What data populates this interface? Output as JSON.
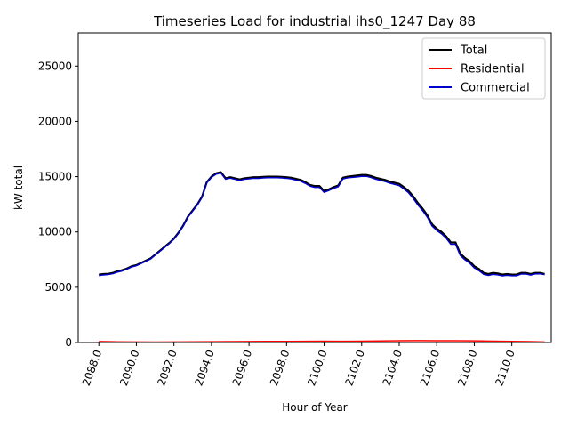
{
  "chart_data": {
    "type": "line",
    "title": "Timeseries Load for industrial ihs0_1247  Day 88",
    "xlabel": "Hour of Year",
    "ylabel": "kW total",
    "xlim": [
      2086.9,
      2112.1
    ],
    "ylim": [
      0,
      28000
    ],
    "xticks": [
      2088,
      2090,
      2092,
      2094,
      2096,
      2098,
      2100,
      2102,
      2104,
      2106,
      2108,
      2110
    ],
    "xtick_labels": [
      "2088.0",
      "2090.0",
      "2092.0",
      "2094.0",
      "2096.0",
      "2098.0",
      "2100.0",
      "2102.0",
      "2104.0",
      "2106.0",
      "2108.0",
      "2110.0"
    ],
    "yticks": [
      0,
      5000,
      10000,
      15000,
      20000,
      25000
    ],
    "ytick_labels": [
      "0",
      "5000",
      "10000",
      "15000",
      "20000",
      "25000"
    ],
    "legend_position": "top-right",
    "series": [
      {
        "name": "Total",
        "color": "#000000",
        "x": [
          2088.0,
          2088.25,
          2088.5,
          2088.75,
          2089.0,
          2089.25,
          2089.5,
          2089.75,
          2090.0,
          2090.25,
          2090.5,
          2090.75,
          2091.0,
          2091.25,
          2091.5,
          2091.75,
          2092.0,
          2092.25,
          2092.5,
          2092.75,
          2093.0,
          2093.25,
          2093.5,
          2093.75,
          2094.0,
          2094.25,
          2094.5,
          2094.75,
          2095.0,
          2095.25,
          2095.5,
          2095.75,
          2096.0,
          2096.25,
          2096.5,
          2096.75,
          2097.0,
          2097.25,
          2097.5,
          2097.75,
          2098.0,
          2098.25,
          2098.5,
          2098.75,
          2099.0,
          2099.25,
          2099.5,
          2099.75,
          2100.0,
          2100.25,
          2100.5,
          2100.75,
          2101.0,
          2101.25,
          2101.5,
          2101.75,
          2102.0,
          2102.25,
          2102.5,
          2102.75,
          2103.0,
          2103.25,
          2103.5,
          2103.75,
          2104.0,
          2104.25,
          2104.5,
          2104.75,
          2105.0,
          2105.25,
          2105.5,
          2105.75,
          2106.0,
          2106.25,
          2106.5,
          2106.75,
          2107.0,
          2107.25,
          2107.5,
          2107.75,
          2108.0,
          2108.25,
          2108.5,
          2108.75,
          2109.0,
          2109.25,
          2109.5,
          2109.75,
          2110.0,
          2110.25,
          2110.5,
          2110.75,
          2111.0,
          2111.25,
          2111.5,
          2111.75
        ],
        "values": [
          6150,
          6200,
          6220,
          6300,
          6450,
          6550,
          6700,
          6900,
          7000,
          7200,
          7400,
          7600,
          7950,
          8300,
          8650,
          9000,
          9400,
          9950,
          10600,
          11400,
          11950,
          12500,
          13200,
          14500,
          15000,
          15300,
          15400,
          14850,
          14950,
          14850,
          14750,
          14850,
          14900,
          14950,
          14950,
          14980,
          15000,
          15000,
          15000,
          14980,
          14950,
          14900,
          14800,
          14700,
          14500,
          14250,
          14150,
          14150,
          13700,
          13850,
          14050,
          14200,
          14900,
          15000,
          15050,
          15100,
          15150,
          15150,
          15050,
          14900,
          14800,
          14700,
          14550,
          14450,
          14350,
          14050,
          13700,
          13200,
          12600,
          12100,
          11500,
          10700,
          10300,
          10000,
          9600,
          9050,
          9050,
          8050,
          7650,
          7350,
          6900,
          6650,
          6300,
          6200,
          6300,
          6250,
          6150,
          6200,
          6150,
          6150,
          6300,
          6300,
          6200,
          6300,
          6300,
          6200
        ]
      },
      {
        "name": "Residential",
        "color": "#ff0000",
        "x": [
          2088.0,
          2089.0,
          2090.0,
          2091.0,
          2092.0,
          2093.0,
          2094.0,
          2095.0,
          2096.0,
          2097.0,
          2098.0,
          2099.0,
          2100.0,
          2101.0,
          2102.0,
          2103.0,
          2104.0,
          2105.0,
          2106.0,
          2107.0,
          2108.0,
          2109.0,
          2110.0,
          2111.0,
          2111.75
        ],
        "values": [
          90,
          60,
          50,
          45,
          50,
          60,
          70,
          85,
          95,
          100,
          105,
          110,
          120,
          110,
          120,
          145,
          160,
          170,
          165,
          160,
          150,
          125,
          100,
          80,
          55
        ]
      },
      {
        "name": "Commercial",
        "color": "#0000cc",
        "x": [
          2088.0,
          2088.25,
          2088.5,
          2088.75,
          2089.0,
          2089.25,
          2089.5,
          2089.75,
          2090.0,
          2090.25,
          2090.5,
          2090.75,
          2091.0,
          2091.25,
          2091.5,
          2091.75,
          2092.0,
          2092.25,
          2092.5,
          2092.75,
          2093.0,
          2093.25,
          2093.5,
          2093.75,
          2094.0,
          2094.25,
          2094.5,
          2094.75,
          2095.0,
          2095.25,
          2095.5,
          2095.75,
          2096.0,
          2096.25,
          2096.5,
          2096.75,
          2097.0,
          2097.25,
          2097.5,
          2097.75,
          2098.0,
          2098.25,
          2098.5,
          2098.75,
          2099.0,
          2099.25,
          2099.5,
          2099.75,
          2100.0,
          2100.25,
          2100.5,
          2100.75,
          2101.0,
          2101.25,
          2101.5,
          2101.75,
          2102.0,
          2102.25,
          2102.5,
          2102.75,
          2103.0,
          2103.25,
          2103.5,
          2103.75,
          2104.0,
          2104.25,
          2104.5,
          2104.75,
          2105.0,
          2105.25,
          2105.5,
          2105.75,
          2106.0,
          2106.25,
          2106.5,
          2106.75,
          2107.0,
          2107.25,
          2107.5,
          2107.75,
          2108.0,
          2108.25,
          2108.5,
          2108.75,
          2109.0,
          2109.25,
          2109.5,
          2109.75,
          2110.0,
          2110.25,
          2110.5,
          2110.75,
          2111.0,
          2111.25,
          2111.5,
          2111.75
        ],
        "values": [
          6060,
          6120,
          6150,
          6230,
          6380,
          6480,
          6640,
          6840,
          6950,
          7150,
          7350,
          7550,
          7900,
          8250,
          8600,
          8950,
          9350,
          9890,
          10540,
          11340,
          11890,
          12440,
          13140,
          14430,
          14930,
          15230,
          15330,
          14770,
          14860,
          14760,
          14660,
          14760,
          14800,
          14850,
          14850,
          14880,
          14900,
          14900,
          14900,
          14880,
          14850,
          14790,
          14690,
          14590,
          14390,
          14140,
          14030,
          14030,
          13580,
          13740,
          13940,
          14090,
          14790,
          14890,
          14930,
          14980,
          15030,
          15030,
          14920,
          14770,
          14660,
          14560,
          14410,
          14300,
          14190,
          13890,
          13540,
          13030,
          12430,
          11930,
          11330,
          10540,
          10140,
          9840,
          9440,
          8890,
          8890,
          7890,
          7490,
          7190,
          6750,
          6500,
          6170,
          6070,
          6170,
          6120,
          6030,
          6080,
          6040,
          6040,
          6200,
          6200,
          6100,
          6210,
          6220,
          6140
        ]
      }
    ]
  }
}
